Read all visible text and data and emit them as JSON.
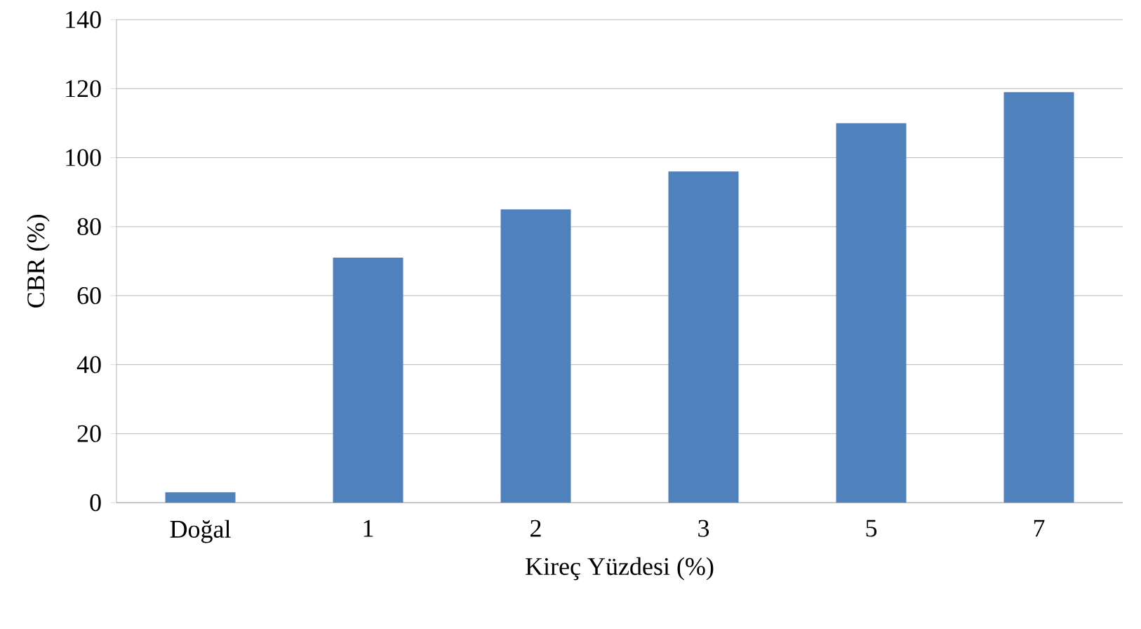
{
  "chart_data": {
    "type": "bar",
    "xlabel": "Kireç Yüzdesi (%)",
    "ylabel": "CBR (%)",
    "categories": [
      "Doğal",
      "1",
      "2",
      "3",
      "5",
      "7"
    ],
    "values": [
      3,
      71,
      85,
      96,
      110,
      119
    ],
    "color": "#4f81bd",
    "ylim": [
      0,
      140
    ],
    "yticks": [
      0,
      20,
      40,
      60,
      80,
      100,
      120,
      140
    ],
    "grid": "y"
  }
}
